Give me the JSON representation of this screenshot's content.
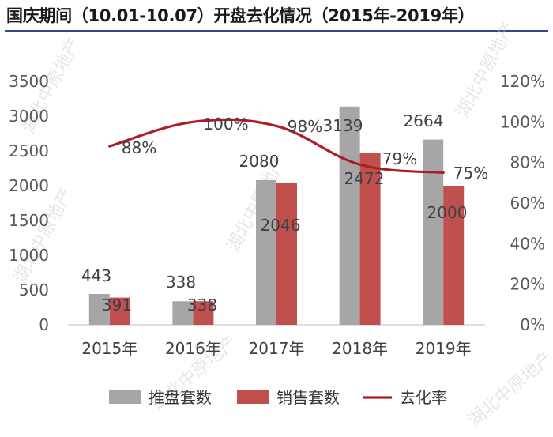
{
  "title": "国庆期间（10.01-10.07）开盘去化情况（2015年-2019年）",
  "watermark": "湖北中原地产",
  "colors": {
    "supply": "#a6a6a6",
    "sales": "#c0504d",
    "rate": "#b01c24",
    "title_rule": "#2e4a8c"
  },
  "chart_data": {
    "type": "bar",
    "categories": [
      "2015年",
      "2016年",
      "2017年",
      "2018年",
      "2019年"
    ],
    "series": [
      {
        "name": "推盘套数",
        "type": "bar",
        "axis": "left",
        "values": [
          443,
          338,
          2080,
          3139,
          2664
        ],
        "labels": [
          "443",
          "338",
          "2080",
          "3139",
          "2664"
        ]
      },
      {
        "name": "销售套数",
        "type": "bar",
        "axis": "left",
        "values": [
          391,
          338,
          2046,
          2472,
          2000
        ],
        "labels": [
          "391",
          "338",
          "2046",
          "2472",
          "2000"
        ]
      },
      {
        "name": "去化率",
        "type": "line",
        "axis": "right",
        "values": [
          88,
          100,
          98,
          79,
          75
        ],
        "labels": [
          "88%",
          "100%",
          "98%",
          "79%",
          "75%"
        ]
      }
    ],
    "left_axis": {
      "min": 0,
      "max": 3500,
      "ticks": [
        "0",
        "500",
        "1000",
        "1500",
        "2000",
        "2500",
        "3000",
        "3500"
      ]
    },
    "right_axis": {
      "min": 0,
      "max": 120,
      "ticks": [
        "0%",
        "20%",
        "40%",
        "60%",
        "80%",
        "100%",
        "120%"
      ]
    },
    "grid": false,
    "legend_position": "bottom"
  }
}
